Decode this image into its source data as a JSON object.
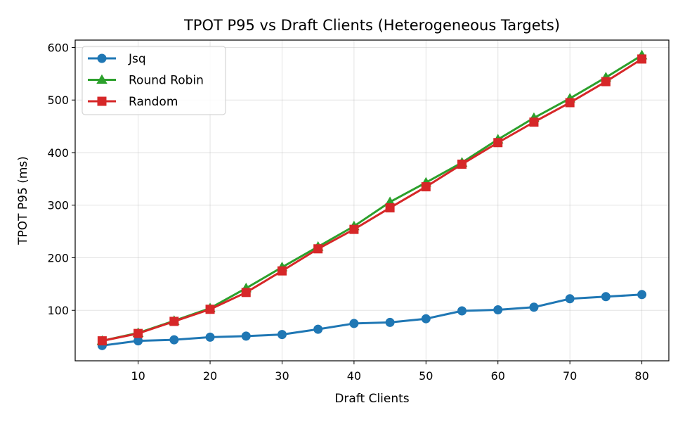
{
  "chart_data": {
    "type": "line",
    "title": "TPOT P95 vs Draft Clients (Heterogeneous Targets)",
    "xlabel": "Draft Clients",
    "ylabel": "TPOT P95 (ms)",
    "xlim": [
      1.25,
      83.75
    ],
    "ylim": [
      4,
      614
    ],
    "xticks": [
      10,
      20,
      30,
      40,
      50,
      60,
      70,
      80
    ],
    "yticks": [
      100,
      200,
      300,
      400,
      500,
      600
    ],
    "grid": true,
    "legend_position": "top-left",
    "x": [
      5,
      10,
      15,
      20,
      25,
      30,
      35,
      40,
      45,
      50,
      55,
      60,
      65,
      70,
      75,
      80
    ],
    "series": [
      {
        "name": "Jsq",
        "color": "#1f77b4",
        "marker": "circle",
        "values": [
          33,
          42,
          44,
          49,
          51,
          54,
          64,
          75,
          77,
          84,
          99,
          101,
          106,
          122,
          126,
          130
        ]
      },
      {
        "name": "Round Robin",
        "color": "#2ca02c",
        "marker": "triangle",
        "values": [
          42,
          57,
          80,
          104,
          142,
          182,
          221,
          260,
          306,
          343,
          381,
          425,
          466,
          503,
          543,
          585
        ]
      },
      {
        "name": "Random",
        "color": "#d62728",
        "marker": "square",
        "values": [
          42,
          56,
          79,
          102,
          134,
          175,
          217,
          254,
          295,
          335,
          378,
          419,
          458,
          495,
          535,
          578
        ]
      }
    ]
  }
}
